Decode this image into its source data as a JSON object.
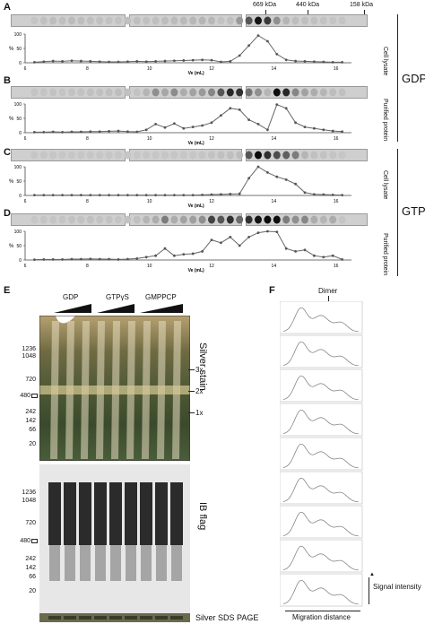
{
  "panel_labels": {
    "A": "A",
    "B": "B",
    "C": "C",
    "D": "D",
    "E": "E",
    "F": "F"
  },
  "size_markers_top": [
    "669 kDa",
    "440 kDa",
    "158 kDa"
  ],
  "row_labels": {
    "cell_lysate_1": "Cell lysate",
    "purified_1": "Purified protein",
    "cell_lysate_2": "Cell lysate",
    "purified_2": "Purified protein"
  },
  "nucleotide_labels": {
    "gdp": "GDP",
    "gtpgs": "GTPγS"
  },
  "panel_e": {
    "groups": [
      "GDP",
      "GTPγS",
      "GMPPCP"
    ],
    "silver_title": "Silver stain",
    "ib_title": "IB flag",
    "bottom_title": "Silver SDS PAGE",
    "markers": [
      "1236",
      "1048",
      "720",
      "480",
      "242",
      "142",
      "66",
      "20"
    ],
    "oligomers": [
      "3x",
      "2x",
      "1x"
    ]
  },
  "panel_f": {
    "dimer": "Dimer",
    "y_label": "Signal intensity",
    "x_label": "Migration distance"
  },
  "chart_data": [
    {
      "type": "line",
      "title": "",
      "xlabel": "Ve (mL)",
      "ylabel": "%",
      "xlim": [
        6,
        16.5
      ],
      "ylim": [
        0,
        100
      ],
      "x_ticks": [
        "6",
        "8",
        "10",
        "12",
        "14",
        "16"
      ],
      "y_ticks": [
        "0",
        "50",
        "100"
      ],
      "x": [
        6.3,
        6.6,
        6.9,
        7.2,
        7.5,
        7.8,
        8.1,
        8.4,
        8.7,
        9.0,
        9.3,
        9.6,
        9.9,
        10.2,
        10.5,
        10.8,
        11.1,
        11.4,
        11.7,
        12.0,
        12.3,
        12.6,
        12.9,
        13.2,
        13.5,
        13.8,
        14.1,
        14.4,
        14.7,
        15.0,
        15.3,
        15.6,
        15.9,
        16.2
      ],
      "series": [
        {
          "values": [
            2,
            4,
            6,
            5,
            7,
            6,
            5,
            4,
            3,
            3,
            4,
            5,
            4,
            5,
            6,
            7,
            8,
            9,
            10,
            9,
            3,
            5,
            25,
            60,
            95,
            75,
            30,
            10,
            6,
            5,
            4,
            3,
            2,
            2
          ]
        }
      ]
    },
    {
      "type": "line",
      "title": "",
      "xlabel": "Ve (mL)",
      "ylabel": "%",
      "xlim": [
        6,
        16.5
      ],
      "ylim": [
        0,
        100
      ],
      "x_ticks": [
        "6",
        "8",
        "10",
        "12",
        "14",
        "16"
      ],
      "y_ticks": [
        "0",
        "50",
        "100"
      ],
      "x": [
        6.3,
        6.6,
        6.9,
        7.2,
        7.5,
        7.8,
        8.1,
        8.4,
        8.7,
        9.0,
        9.3,
        9.6,
        9.9,
        10.2,
        10.5,
        10.8,
        11.1,
        11.4,
        11.7,
        12.0,
        12.3,
        12.6,
        12.9,
        13.2,
        13.5,
        13.8,
        14.1,
        14.4,
        14.7,
        15.0,
        15.3,
        15.6,
        15.9,
        16.2
      ],
      "series": [
        {
          "values": [
            2,
            2,
            3,
            2,
            3,
            3,
            4,
            4,
            5,
            6,
            4,
            3,
            10,
            30,
            18,
            32,
            15,
            20,
            25,
            35,
            60,
            85,
            80,
            45,
            30,
            10,
            98,
            85,
            35,
            20,
            15,
            10,
            6,
            4
          ]
        }
      ]
    },
    {
      "type": "line",
      "title": "",
      "xlabel": "Ve (mL)",
      "ylabel": "%",
      "xlim": [
        6,
        16.5
      ],
      "ylim": [
        0,
        100
      ],
      "x_ticks": [
        "6",
        "8",
        "10",
        "12",
        "14",
        "16"
      ],
      "y_ticks": [
        "0",
        "50",
        "100"
      ],
      "x": [
        6.3,
        6.6,
        6.9,
        7.2,
        7.5,
        7.8,
        8.1,
        8.4,
        8.7,
        9.0,
        9.3,
        9.6,
        9.9,
        10.2,
        10.5,
        10.8,
        11.1,
        11.4,
        11.7,
        12.0,
        12.3,
        12.6,
        12.9,
        13.2,
        13.5,
        13.8,
        14.1,
        14.4,
        14.7,
        15.0,
        15.3,
        15.6,
        15.9,
        16.2
      ],
      "series": [
        {
          "values": [
            1,
            1,
            1,
            1,
            1,
            1,
            1,
            1,
            1,
            1,
            1,
            1,
            1,
            1,
            1,
            1,
            1,
            1,
            2,
            3,
            4,
            5,
            6,
            60,
            100,
            80,
            65,
            55,
            40,
            10,
            4,
            3,
            2,
            1
          ]
        }
      ]
    },
    {
      "type": "line",
      "title": "",
      "xlabel": "Ve (mL)",
      "ylabel": "%",
      "xlim": [
        6,
        16.5
      ],
      "ylim": [
        0,
        100
      ],
      "x_ticks": [
        "6",
        "8",
        "10",
        "12",
        "14",
        "16"
      ],
      "y_ticks": [
        "0",
        "50",
        "100"
      ],
      "x": [
        6.3,
        6.6,
        6.9,
        7.2,
        7.5,
        7.8,
        8.1,
        8.4,
        8.7,
        9.0,
        9.3,
        9.6,
        9.9,
        10.2,
        10.5,
        10.8,
        11.1,
        11.4,
        11.7,
        12.0,
        12.3,
        12.6,
        12.9,
        13.2,
        13.5,
        13.8,
        14.1,
        14.4,
        14.7,
        15.0,
        15.3,
        15.6,
        15.9,
        16.2
      ],
      "series": [
        {
          "values": [
            1,
            2,
            2,
            2,
            3,
            3,
            4,
            3,
            3,
            2,
            3,
            5,
            10,
            15,
            40,
            15,
            20,
            22,
            30,
            70,
            60,
            80,
            50,
            80,
            95,
            100,
            98,
            40,
            30,
            35,
            15,
            10,
            15,
            2
          ]
        }
      ]
    }
  ]
}
